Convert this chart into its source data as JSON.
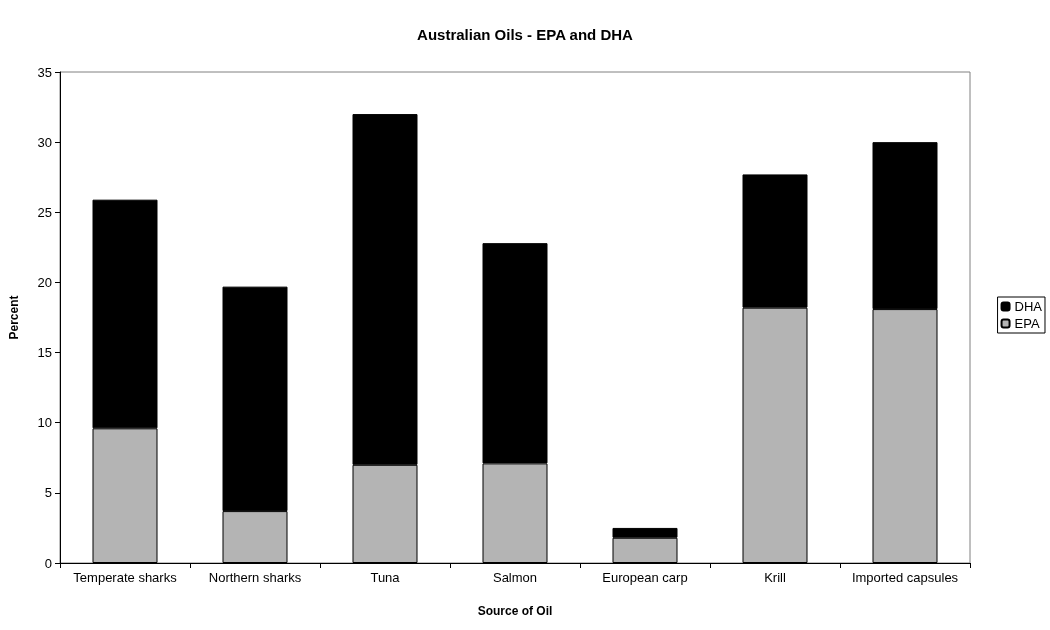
{
  "chart_data": {
    "type": "bar",
    "title": "Australian Oils - EPA and DHA",
    "xlabel": "Source of Oil",
    "ylabel": "Percent",
    "categories": [
      "Temperate sharks",
      "Northern sharks",
      "Tuna",
      "Salmon",
      "European carp",
      "Krill",
      "Imported capsules"
    ],
    "series": [
      {
        "name": "EPA",
        "color": "#b4b4b4",
        "values": [
          9.6,
          3.7,
          7.0,
          7.1,
          1.8,
          18.2,
          18.1
        ]
      },
      {
        "name": "DHA",
        "color": "#000000",
        "values": [
          16.3,
          16.0,
          25.0,
          15.7,
          0.7,
          9.5,
          11.9
        ]
      }
    ],
    "stacked": true,
    "ylim": [
      0,
      35
    ],
    "yticks": [
      0,
      5,
      10,
      15,
      20,
      25,
      30,
      35
    ],
    "grid": false,
    "legend": "right"
  }
}
